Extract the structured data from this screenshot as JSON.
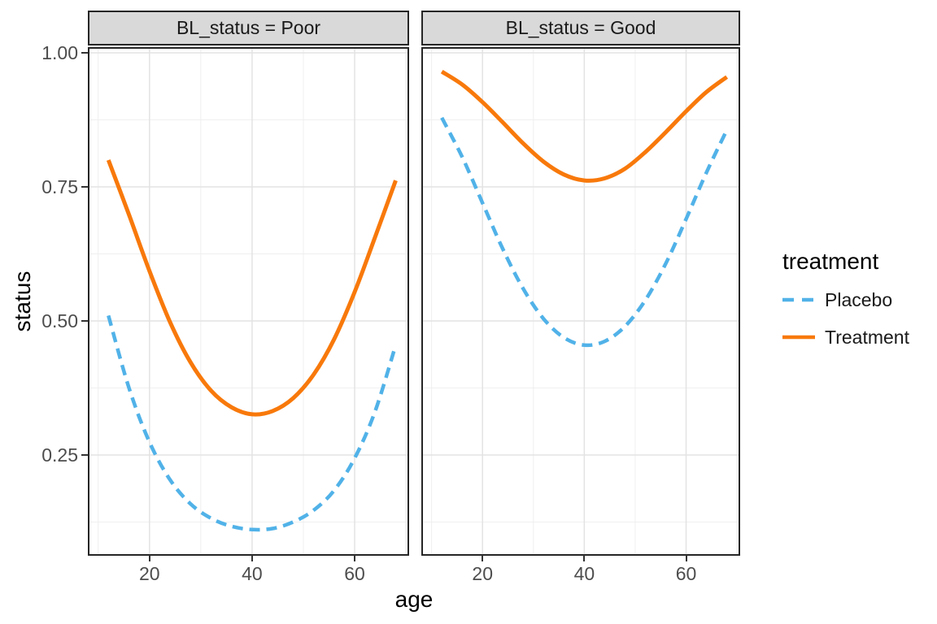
{
  "facets": [
    {
      "label": "BL_status = Poor"
    },
    {
      "label": "BL_status = Good"
    }
  ],
  "axes": {
    "x": {
      "title": "age",
      "ticks": [
        {
          "label": "20",
          "value": 20
        },
        {
          "label": "40",
          "value": 40
        },
        {
          "label": "60",
          "value": 60
        }
      ],
      "minor_ticks": [
        10,
        30,
        50,
        70
      ],
      "domain": [
        8.3,
        70.3
      ]
    },
    "y": {
      "title": "status",
      "ticks": [
        {
          "label": "1.00",
          "value": 1.0
        },
        {
          "label": "0.75",
          "value": 0.75
        },
        {
          "label": "0.50",
          "value": 0.5
        },
        {
          "label": "0.25",
          "value": 0.25
        }
      ],
      "minor_ticks": [
        0.125,
        0.375,
        0.625,
        0.875
      ],
      "domain": [
        0.0652,
        1.0076
      ]
    }
  },
  "legend": {
    "title": "treatment",
    "items": [
      {
        "label": "Placebo",
        "color": "#51B2E8",
        "dashed": true
      },
      {
        "label": "Treatment",
        "color": "#F8790B",
        "dashed": false
      }
    ]
  },
  "style": {
    "strip_bg": "#D9D9D9",
    "panel_border": "#262626",
    "grid_major": "#E3E3E3",
    "grid_minor": "#EFEFEF",
    "tick_color": "#333333",
    "tick_label_color": "#4D4D4D",
    "placebo_color": "#51B2E8",
    "treatment_color": "#F8790B"
  },
  "chart_data": [
    {
      "type": "line",
      "facet": "BL_status = Poor",
      "xlabel": "age",
      "ylabel": "status",
      "xlim": [
        8.3,
        70.3
      ],
      "ylim": [
        0.065,
        1.008
      ],
      "grid": true,
      "legend_position": "right",
      "x": [
        12,
        16,
        20,
        24,
        28,
        32,
        36,
        40,
        44,
        48,
        52,
        56,
        60,
        64,
        68
      ],
      "series": [
        {
          "name": "Placebo",
          "color": "#51B2E8",
          "dashed": true,
          "values": [
            0.51,
            0.375,
            0.274,
            0.204,
            0.159,
            0.132,
            0.117,
            0.111,
            0.113,
            0.125,
            0.147,
            0.184,
            0.244,
            0.332,
            0.455
          ]
        },
        {
          "name": "Treatment",
          "color": "#F8790B",
          "dashed": false,
          "values": [
            0.8,
            0.698,
            0.593,
            0.498,
            0.423,
            0.37,
            0.339,
            0.326,
            0.332,
            0.356,
            0.4,
            0.466,
            0.554,
            0.657,
            0.762
          ]
        }
      ]
    },
    {
      "type": "line",
      "facet": "BL_status = Good",
      "xlabel": "age",
      "ylabel": "status",
      "xlim": [
        8.3,
        70.3
      ],
      "ylim": [
        0.065,
        1.008
      ],
      "grid": true,
      "legend_position": "right",
      "x": [
        12,
        16,
        20,
        24,
        28,
        32,
        36,
        40,
        44,
        48,
        52,
        56,
        60,
        64,
        68
      ],
      "series": [
        {
          "name": "Placebo",
          "color": "#51B2E8",
          "dashed": true,
          "values": [
            0.879,
            0.806,
            0.72,
            0.634,
            0.56,
            0.504,
            0.469,
            0.455,
            0.462,
            0.49,
            0.539,
            0.607,
            0.69,
            0.777,
            0.856
          ]
        },
        {
          "name": "Treatment",
          "color": "#F8790B",
          "dashed": false,
          "values": [
            0.965,
            0.941,
            0.908,
            0.87,
            0.831,
            0.797,
            0.773,
            0.762,
            0.766,
            0.784,
            0.815,
            0.852,
            0.891,
            0.927,
            0.955
          ]
        }
      ]
    }
  ]
}
